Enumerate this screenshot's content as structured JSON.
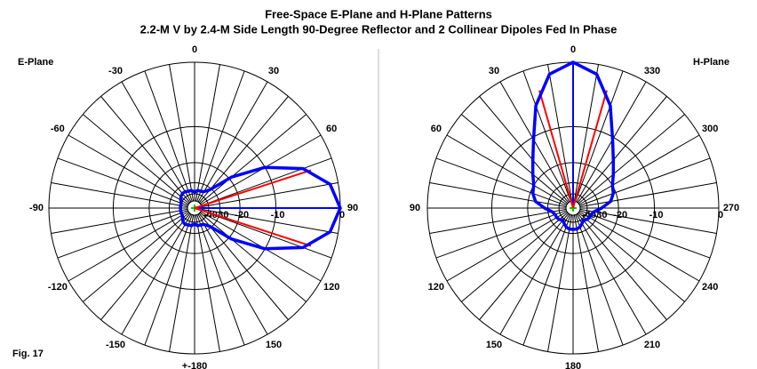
{
  "title": "Free-Space E-Plane and H-Plane Patterns",
  "subtitle": "2.2-M V by 2.4-M Side Length 90-Degree Reflector and 2 Collinear Dipoles Fed In Phase",
  "figure_label": "Fig. 17",
  "chart_data": [
    {
      "type": "polar",
      "title": "E-Plane",
      "direction": "clockwise",
      "rscale": "arrl-log",
      "rlim": [
        -40,
        0
      ],
      "rticks": [
        -40,
        -30,
        -20,
        -10,
        0
      ],
      "rlabel_angle": 90,
      "angle_ticks": [
        0,
        30,
        60,
        90,
        120,
        150,
        {
          "value": 180,
          "label": "+-180"
        },
        -150,
        -120,
        -90,
        -60,
        -30
      ],
      "theta": [
        0,
        10,
        20,
        30,
        40,
        50,
        60,
        70,
        80,
        90,
        100,
        110,
        120,
        130,
        140,
        150,
        160,
        170,
        180,
        190,
        200,
        210,
        220,
        230,
        240,
        250,
        260,
        270,
        280,
        290,
        300,
        310,
        320,
        330,
        340,
        350
      ],
      "values": [
        -38,
        -36,
        -36,
        -35,
        -31,
        -19,
        -10,
        -4,
        -1,
        0,
        -1,
        -4,
        -10,
        -19,
        -31,
        -35,
        -36,
        -36,
        -38,
        -36,
        -36,
        -35,
        -36,
        -38,
        -40,
        -40,
        -40,
        -40,
        -40,
        -40,
        -38,
        -36,
        -35,
        -35,
        -36,
        -36
      ],
      "color": "#0000ff",
      "beamwidth": [
        {
          "theta": 72,
          "value": -3
        },
        {
          "theta": 108,
          "value": -3
        }
      ],
      "beamwidth_color": "#ff0000",
      "peak": {
        "theta": 90,
        "value": 0
      }
    },
    {
      "type": "polar",
      "title": "H-Plane",
      "direction": "counterclockwise",
      "rscale": "arrl-log",
      "rlim": [
        -40,
        0
      ],
      "rticks": [
        -40,
        -30,
        -20,
        -10,
        0
      ],
      "rlabel_angle": 270,
      "angle_ticks": [
        0,
        330,
        300,
        270,
        240,
        210,
        180,
        150,
        120,
        90,
        60,
        30
      ],
      "theta": [
        0,
        10,
        20,
        30,
        40,
        50,
        60,
        70,
        80,
        90,
        100,
        110,
        120,
        130,
        140,
        150,
        160,
        170,
        180,
        190,
        200,
        210,
        220,
        230,
        240,
        250,
        260,
        270,
        280,
        290,
        300,
        310,
        320,
        330,
        340,
        350
      ],
      "values": [
        0,
        -1.2,
        -5,
        -10.5,
        -14.5,
        -17.5,
        -20,
        -21,
        -23,
        -28,
        -33,
        -35,
        -35,
        -36,
        -38,
        -36,
        -34,
        -33,
        -33,
        -33,
        -34,
        -36,
        -38,
        -36,
        -35,
        -35,
        -33,
        -28,
        -23,
        -21,
        -20,
        -17.5,
        -14.5,
        -10.5,
        -5,
        -1.2
      ],
      "color": "#0000ff",
      "beamwidth": [
        {
          "theta": 16,
          "value": -3
        },
        {
          "theta": 344,
          "value": -3
        }
      ],
      "beamwidth_color": "#ff0000",
      "peak": {
        "theta": 0,
        "value": 0
      }
    }
  ]
}
